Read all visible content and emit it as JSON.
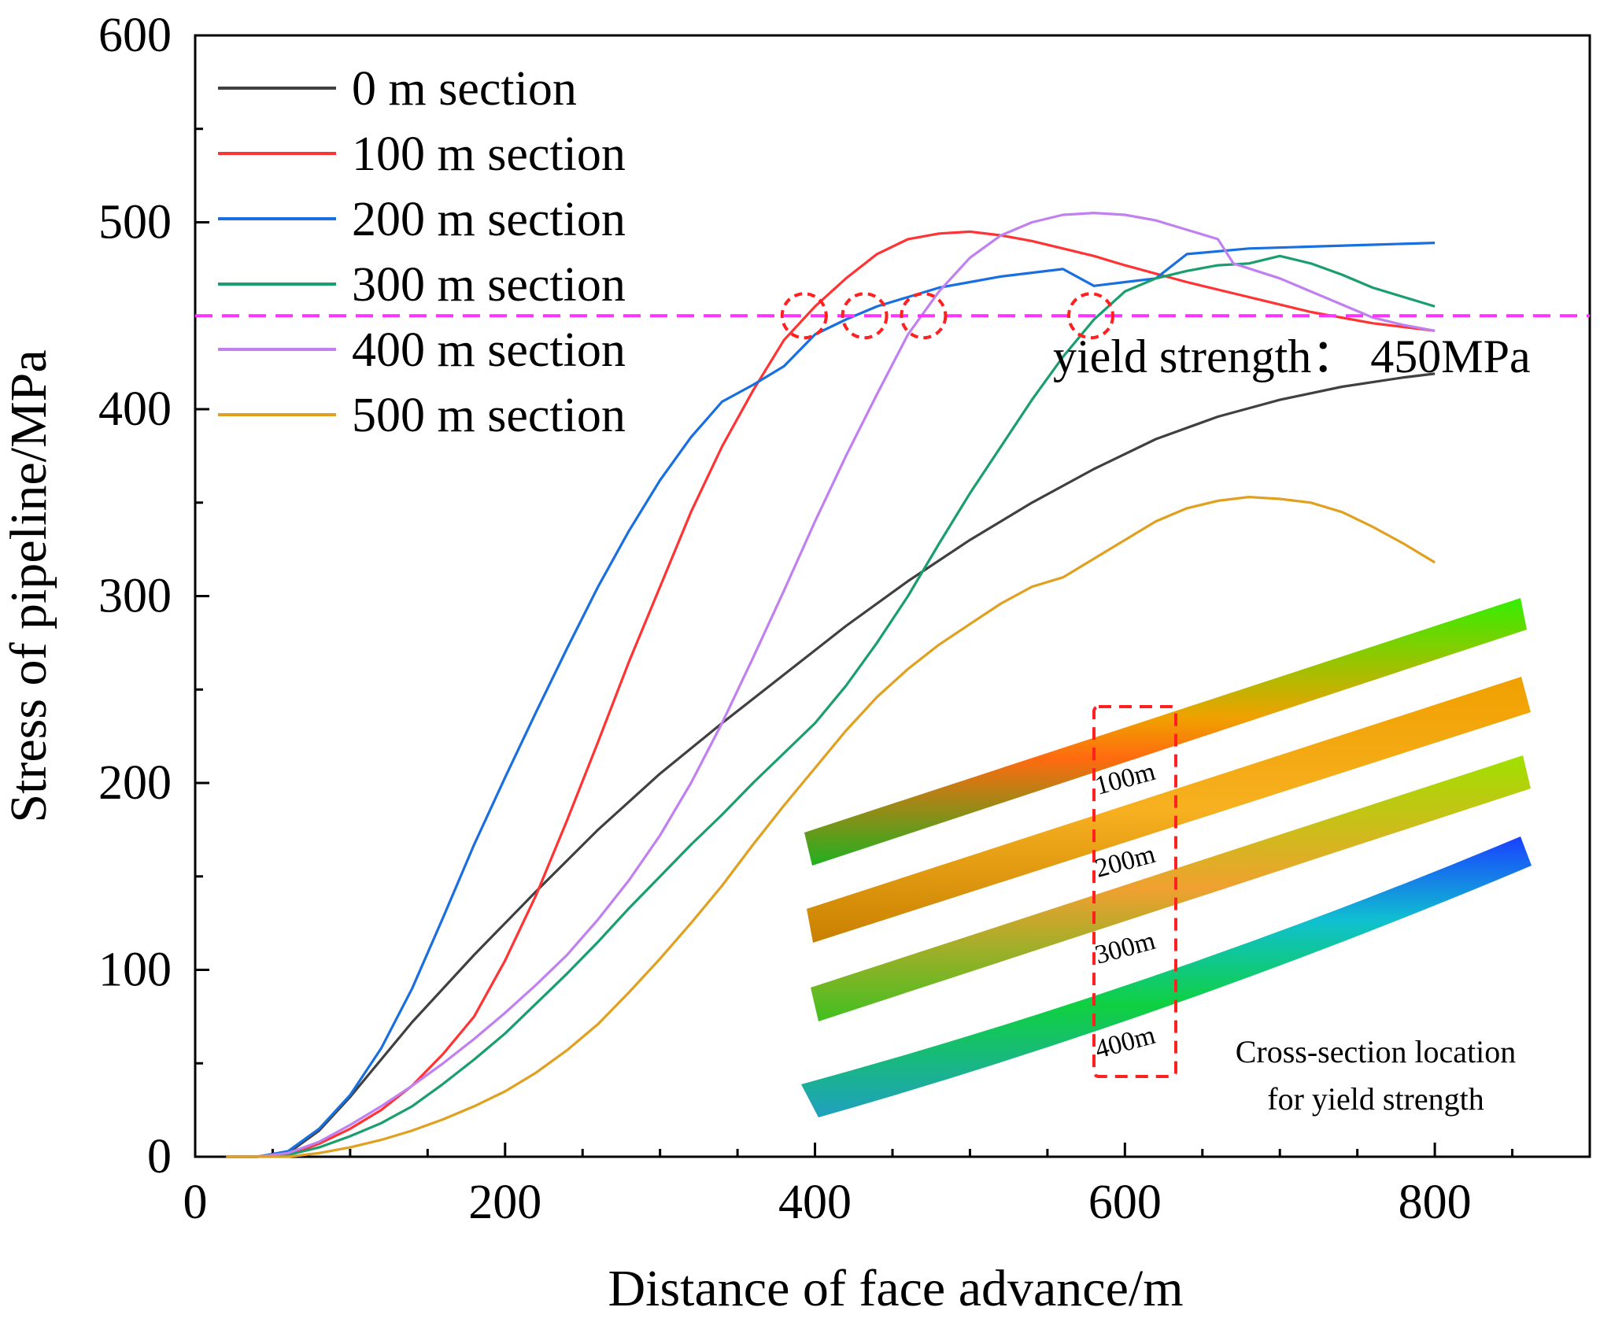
{
  "chart_data": {
    "type": "line",
    "title": "",
    "xlabel": "Distance of face advance/m",
    "ylabel": "Stress of pipeline/MPa",
    "xlim": [
      0,
      900
    ],
    "ylim": [
      0,
      600
    ],
    "x_ticks": [
      0,
      200,
      400,
      600,
      800
    ],
    "y_ticks": [
      0,
      100,
      200,
      300,
      400,
      500,
      600
    ],
    "legend_position": "top-left",
    "series": [
      {
        "name": "0 m section",
        "color": "#404040",
        "points": [
          [
            20,
            0
          ],
          [
            40,
            0
          ],
          [
            60,
            2
          ],
          [
            80,
            14
          ],
          [
            100,
            32
          ],
          [
            140,
            72
          ],
          [
            180,
            108
          ],
          [
            220,
            142
          ],
          [
            260,
            175
          ],
          [
            300,
            205
          ],
          [
            340,
            232
          ],
          [
            380,
            258
          ],
          [
            420,
            284
          ],
          [
            460,
            308
          ],
          [
            500,
            330
          ],
          [
            540,
            350
          ],
          [
            580,
            368
          ],
          [
            620,
            384
          ],
          [
            660,
            396
          ],
          [
            700,
            405
          ],
          [
            740,
            412
          ],
          [
            780,
            417
          ],
          [
            800,
            419
          ]
        ]
      },
      {
        "name": "100 m section",
        "color": "#ff3333",
        "points": [
          [
            20,
            0
          ],
          [
            40,
            0
          ],
          [
            60,
            1
          ],
          [
            80,
            7
          ],
          [
            100,
            15
          ],
          [
            120,
            25
          ],
          [
            140,
            38
          ],
          [
            160,
            55
          ],
          [
            180,
            75
          ],
          [
            200,
            105
          ],
          [
            220,
            140
          ],
          [
            240,
            180
          ],
          [
            260,
            222
          ],
          [
            280,
            265
          ],
          [
            300,
            305
          ],
          [
            320,
            345
          ],
          [
            340,
            380
          ],
          [
            360,
            410
          ],
          [
            380,
            437
          ],
          [
            400,
            455
          ],
          [
            420,
            470
          ],
          [
            440,
            483
          ],
          [
            460,
            491
          ],
          [
            480,
            494
          ],
          [
            500,
            495
          ],
          [
            520,
            493
          ],
          [
            540,
            490
          ],
          [
            560,
            486
          ],
          [
            580,
            482
          ],
          [
            600,
            477
          ],
          [
            640,
            468
          ],
          [
            680,
            460
          ],
          [
            720,
            452
          ],
          [
            760,
            446
          ],
          [
            800,
            442
          ]
        ]
      },
      {
        "name": "200 m section",
        "color": "#1a6fe0",
        "points": [
          [
            20,
            0
          ],
          [
            40,
            0
          ],
          [
            60,
            3
          ],
          [
            80,
            15
          ],
          [
            100,
            33
          ],
          [
            120,
            58
          ],
          [
            140,
            90
          ],
          [
            160,
            128
          ],
          [
            180,
            167
          ],
          [
            200,
            203
          ],
          [
            220,
            238
          ],
          [
            240,
            272
          ],
          [
            260,
            305
          ],
          [
            280,
            335
          ],
          [
            300,
            362
          ],
          [
            320,
            385
          ],
          [
            340,
            404
          ],
          [
            360,
            413
          ],
          [
            380,
            423
          ],
          [
            400,
            440
          ],
          [
            420,
            448
          ],
          [
            440,
            455
          ],
          [
            460,
            460
          ],
          [
            480,
            465
          ],
          [
            500,
            468
          ],
          [
            520,
            471
          ],
          [
            540,
            473
          ],
          [
            560,
            475
          ],
          [
            580,
            466
          ],
          [
            600,
            468
          ],
          [
            620,
            470
          ],
          [
            640,
            483
          ],
          [
            680,
            486
          ],
          [
            720,
            487
          ],
          [
            760,
            488
          ],
          [
            800,
            489
          ]
        ]
      },
      {
        "name": "300 m section",
        "color": "#1a9e6e",
        "points": [
          [
            20,
            0
          ],
          [
            40,
            0
          ],
          [
            60,
            1
          ],
          [
            80,
            5
          ],
          [
            100,
            11
          ],
          [
            120,
            18
          ],
          [
            140,
            27
          ],
          [
            160,
            39
          ],
          [
            180,
            52
          ],
          [
            200,
            66
          ],
          [
            220,
            82
          ],
          [
            240,
            98
          ],
          [
            260,
            115
          ],
          [
            280,
            133
          ],
          [
            300,
            150
          ],
          [
            320,
            167
          ],
          [
            340,
            183
          ],
          [
            360,
            200
          ],
          [
            380,
            216
          ],
          [
            400,
            232
          ],
          [
            420,
            252
          ],
          [
            440,
            275
          ],
          [
            460,
            300
          ],
          [
            480,
            328
          ],
          [
            500,
            355
          ],
          [
            520,
            380
          ],
          [
            540,
            405
          ],
          [
            560,
            428
          ],
          [
            580,
            448
          ],
          [
            600,
            463
          ],
          [
            620,
            470
          ],
          [
            640,
            474
          ],
          [
            660,
            477
          ],
          [
            680,
            478
          ],
          [
            700,
            482
          ],
          [
            720,
            478
          ],
          [
            740,
            472
          ],
          [
            760,
            465
          ],
          [
            780,
            460
          ],
          [
            800,
            455
          ]
        ]
      },
      {
        "name": "400 m section",
        "color": "#c080f0",
        "points": [
          [
            20,
            0
          ],
          [
            40,
            0
          ],
          [
            60,
            2
          ],
          [
            80,
            8
          ],
          [
            100,
            17
          ],
          [
            120,
            27
          ],
          [
            140,
            38
          ],
          [
            160,
            50
          ],
          [
            180,
            63
          ],
          [
            200,
            77
          ],
          [
            220,
            92
          ],
          [
            240,
            108
          ],
          [
            260,
            127
          ],
          [
            280,
            148
          ],
          [
            300,
            172
          ],
          [
            320,
            200
          ],
          [
            340,
            232
          ],
          [
            360,
            267
          ],
          [
            380,
            303
          ],
          [
            400,
            340
          ],
          [
            420,
            375
          ],
          [
            440,
            408
          ],
          [
            460,
            440
          ],
          [
            480,
            463
          ],
          [
            500,
            481
          ],
          [
            520,
            493
          ],
          [
            540,
            500
          ],
          [
            560,
            504
          ],
          [
            580,
            505
          ],
          [
            600,
            504
          ],
          [
            620,
            501
          ],
          [
            640,
            496
          ],
          [
            660,
            491
          ],
          [
            670,
            478
          ],
          [
            700,
            470
          ],
          [
            720,
            463
          ],
          [
            740,
            456
          ],
          [
            760,
            449
          ],
          [
            780,
            445
          ],
          [
            800,
            442
          ]
        ]
      },
      {
        "name": "500 m section",
        "color": "#e0a020",
        "points": [
          [
            20,
            0
          ],
          [
            40,
            0
          ],
          [
            60,
            0
          ],
          [
            80,
            2
          ],
          [
            100,
            5
          ],
          [
            120,
            9
          ],
          [
            140,
            14
          ],
          [
            160,
            20
          ],
          [
            180,
            27
          ],
          [
            200,
            35
          ],
          [
            220,
            45
          ],
          [
            240,
            57
          ],
          [
            260,
            71
          ],
          [
            280,
            88
          ],
          [
            300,
            106
          ],
          [
            320,
            125
          ],
          [
            340,
            145
          ],
          [
            360,
            167
          ],
          [
            380,
            188
          ],
          [
            400,
            208
          ],
          [
            420,
            228
          ],
          [
            440,
            246
          ],
          [
            460,
            261
          ],
          [
            480,
            274
          ],
          [
            500,
            285
          ],
          [
            520,
            296
          ],
          [
            540,
            305
          ],
          [
            560,
            310
          ],
          [
            580,
            320
          ],
          [
            600,
            330
          ],
          [
            620,
            340
          ],
          [
            640,
            347
          ],
          [
            660,
            351
          ],
          [
            680,
            353
          ],
          [
            700,
            352
          ],
          [
            720,
            350
          ],
          [
            740,
            345
          ],
          [
            760,
            337
          ],
          [
            780,
            328
          ],
          [
            800,
            318
          ]
        ]
      }
    ],
    "reference_line": {
      "y": 450,
      "color": "#ff33ff",
      "style": "dashed"
    },
    "annotations": {
      "yield_label": "yield strength： 450MPa",
      "yield_crossings": [
        [
          393,
          450
        ],
        [
          432,
          450
        ],
        [
          470,
          450
        ],
        [
          578,
          450
        ]
      ],
      "inset_section_labels": [
        "100m",
        "200m",
        "300m",
        "400m"
      ],
      "inset_caption": [
        "Cross-section location",
        "for yield strength"
      ]
    }
  }
}
